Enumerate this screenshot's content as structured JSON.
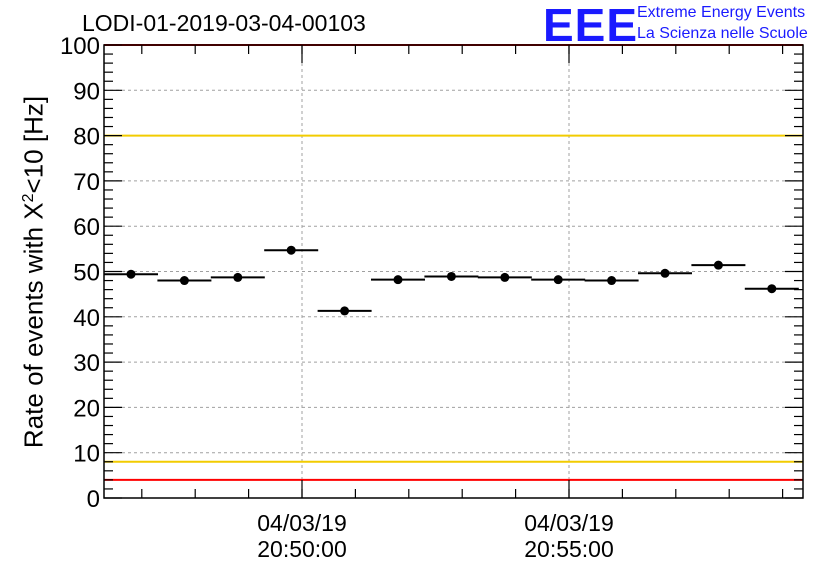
{
  "header": {
    "run_id": "LODI-01-2019-03-04-00103"
  },
  "logo": {
    "mark": "EEE",
    "line1": "Extreme Energy Events",
    "line2": "La Scienza nelle Scuole"
  },
  "chart_data": {
    "type": "scatter",
    "title": "LODI-01-2019-03-04-00103",
    "ylabel_prefix": "Rate of events with X",
    "ylabel_sup": "2",
    "ylabel_suffix": "<10 [Hz]",
    "ylim": [
      0,
      100
    ],
    "yticks": [
      0,
      10,
      20,
      30,
      40,
      50,
      60,
      70,
      80,
      90,
      100
    ],
    "xtick_labels": [
      {
        "date": "04/03/19",
        "time": "20:50:00"
      },
      {
        "date": "04/03/19",
        "time": "20:55:00"
      }
    ],
    "grid": true,
    "reference_lines": [
      {
        "value": 100,
        "color": "#ff0000"
      },
      {
        "value": 80,
        "color": "#f2cc00"
      },
      {
        "value": 8,
        "color": "#f2cc00"
      },
      {
        "value": 4,
        "color": "#ff0000"
      }
    ],
    "series": [
      {
        "values": [
          49.4,
          48.0,
          48.7,
          54.7,
          41.3,
          48.2,
          48.9,
          48.7,
          48.2,
          48.0,
          49.6,
          51.4,
          46.2
        ]
      }
    ],
    "colors": {
      "points": "#000000",
      "axis": "#000000",
      "grid": "#a0a0a0"
    }
  }
}
